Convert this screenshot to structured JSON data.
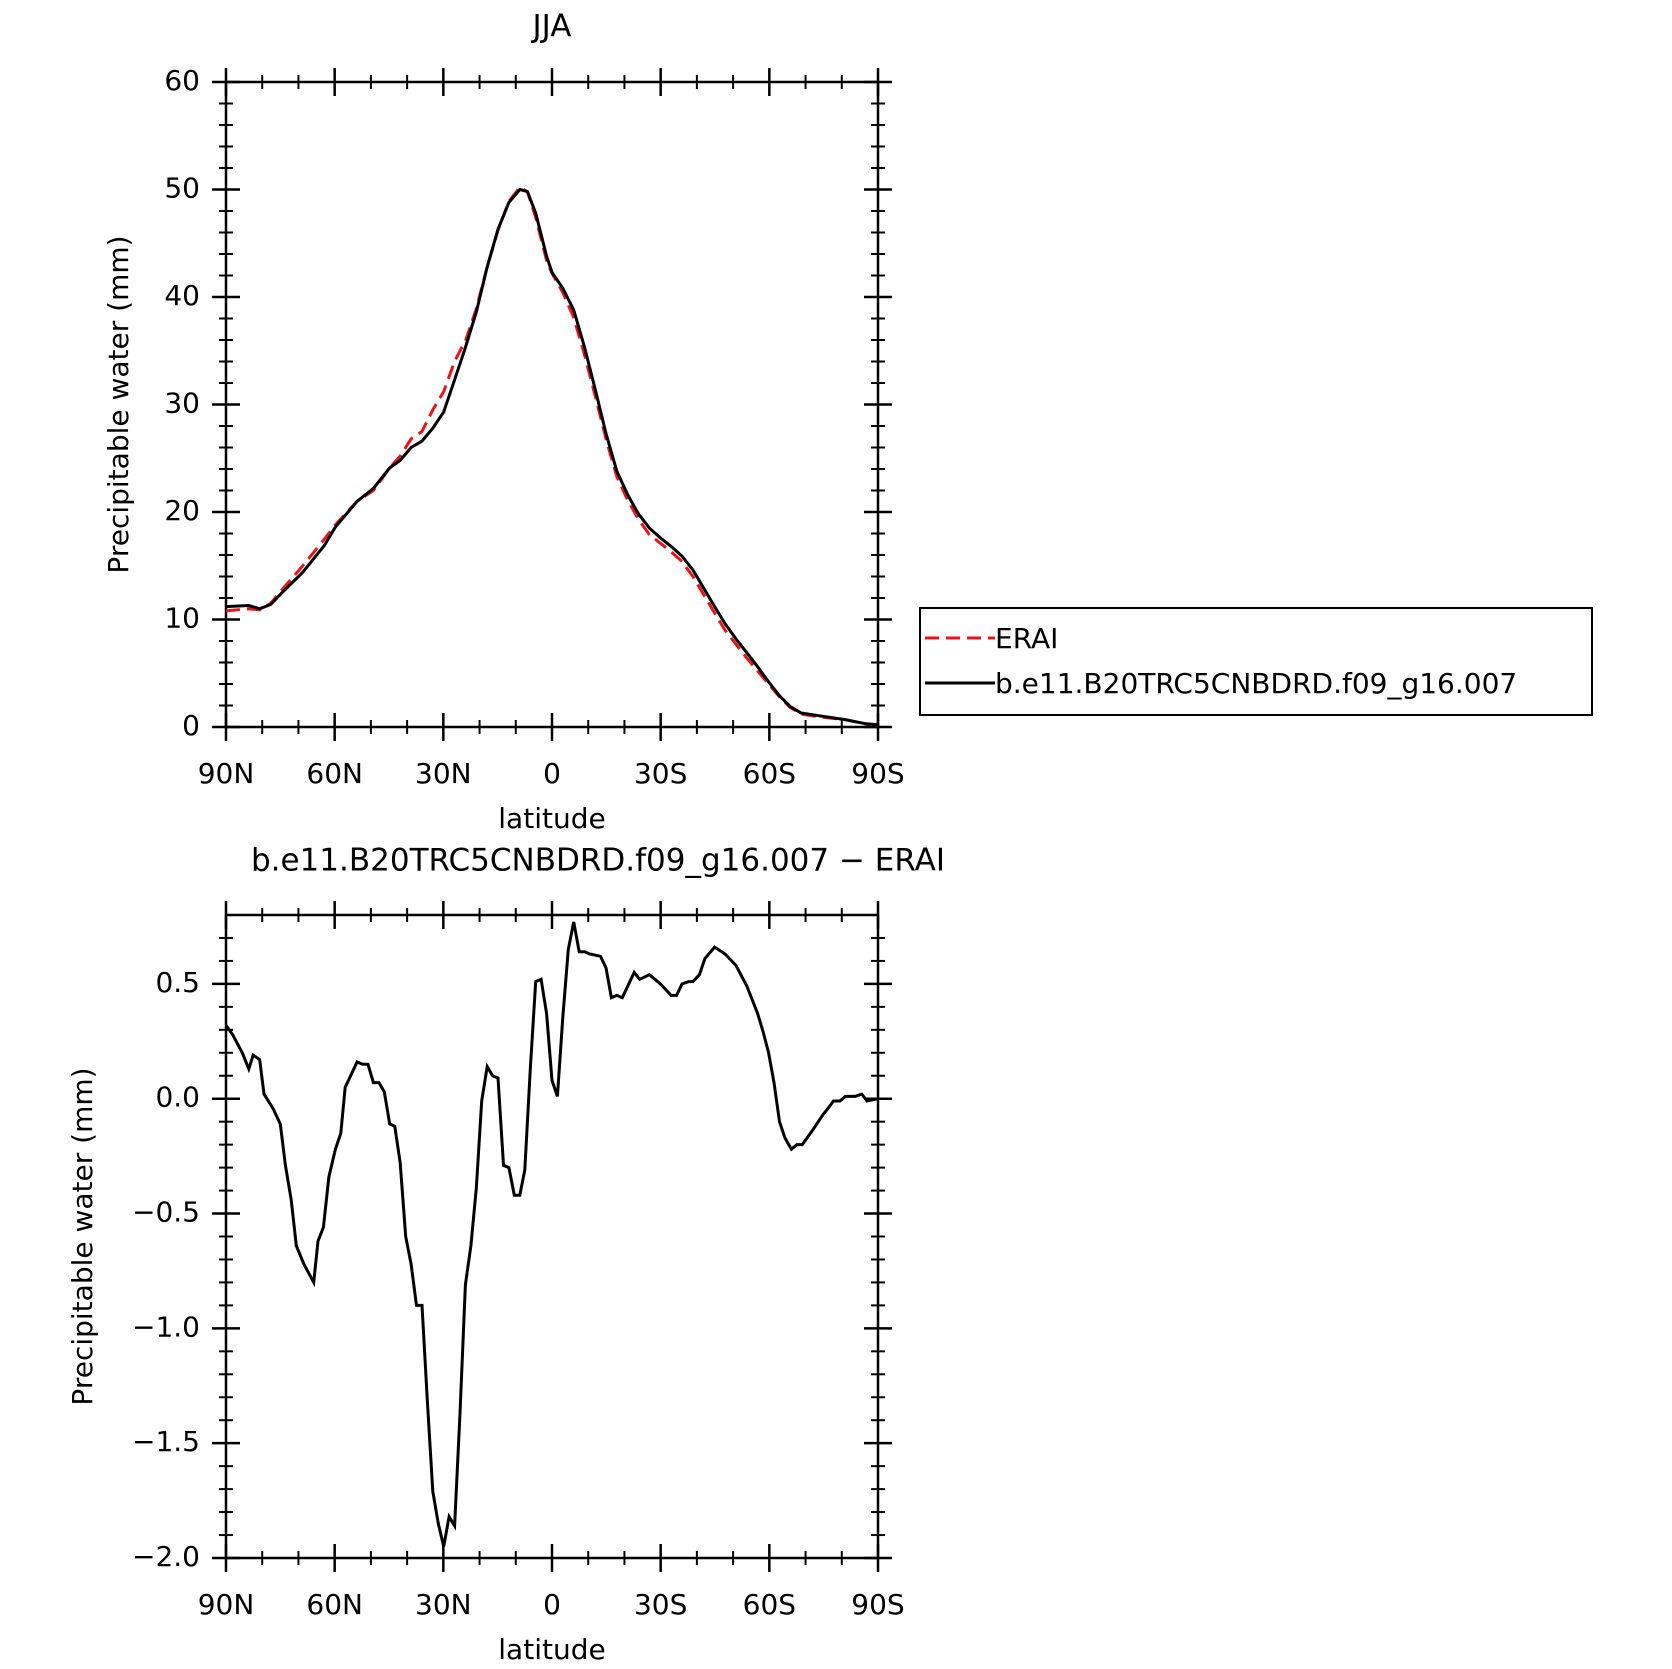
{
  "chart_data": [
    {
      "type": "line",
      "title": "JJA",
      "xlabel": "latitude",
      "ylabel": "Precipitable water (mm)",
      "x": [
        90,
        83.7,
        80.7,
        77.7,
        74.2,
        68.8,
        62.8,
        59.8,
        53.8,
        49.3,
        44.8,
        41.9,
        38.9,
        35.9,
        32.9,
        29.9,
        26.9,
        25.4,
        23.9,
        20.9,
        17.9,
        14.9,
        11.9,
        8.9,
        6.8,
        4.5,
        1.5,
        0,
        -3,
        -6,
        -9,
        -12,
        -14.9,
        -17.9,
        -20.9,
        -23.9,
        -26.9,
        -29.9,
        -32.9,
        -35.9,
        -38.9,
        -41.9,
        -44.9,
        -47.8,
        -50.8,
        -53.8,
        -56.8,
        -59.8,
        -62.8,
        -65.8,
        -68.8,
        -74.8,
        -80.7,
        -86.7,
        -90
      ],
      "series": [
        {
          "name": "ERAI",
          "color": "#e8141c",
          "dash": true,
          "values": [
            10.8,
            11.0,
            10.9,
            11.5,
            12.9,
            15.0,
            17.5,
            18.8,
            21.0,
            22.0,
            24.1,
            25.2,
            26.8,
            27.5,
            29.5,
            31.2,
            34.0,
            35.0,
            35.9,
            38.9,
            42.8,
            46.2,
            48.9,
            50.2,
            49.8,
            47.4,
            43.4,
            42.2,
            40.4,
            38.1,
            34.6,
            30.7,
            26.8,
            23.3,
            21.1,
            19.3,
            17.9,
            17.1,
            16.3,
            15.4,
            14.0,
            12.3,
            10.6,
            9.0,
            7.7,
            6.4,
            5.2,
            4.0,
            2.8,
            1.8,
            1.2,
            0.9,
            0.7,
            0.3,
            0.2
          ]
        },
        {
          "name": "b.e11.B20TRC5CNBDRD.f09_g16.007",
          "color": "#000000",
          "dash": false,
          "values": [
            11.2,
            11.3,
            11.0,
            11.4,
            12.6,
            14.4,
            16.9,
            18.6,
            21.0,
            22.2,
            24.1,
            24.8,
            26.0,
            26.6,
            27.8,
            29.3,
            32.3,
            33.8,
            35.3,
            38.6,
            42.8,
            46.3,
            48.8,
            50.0,
            49.8,
            47.8,
            43.8,
            42.3,
            40.8,
            38.8,
            35.3,
            31.3,
            27.3,
            23.8,
            21.6,
            19.8,
            18.5,
            17.6,
            16.8,
            15.9,
            14.6,
            12.9,
            11.2,
            9.6,
            8.2,
            6.9,
            5.6,
            4.2,
            2.9,
            1.9,
            1.3,
            1.0,
            0.7,
            0.3,
            0.2
          ]
        }
      ],
      "xlim": [
        90,
        -90
      ],
      "xticks": [
        {
          "value": 90,
          "label": "90N"
        },
        {
          "value": 60,
          "label": "60N"
        },
        {
          "value": 30,
          "label": "30N"
        },
        0,
        {
          "value": -30,
          "label": "30S"
        },
        {
          "value": -60,
          "label": "60S"
        },
        {
          "value": -90,
          "label": "90S"
        }
      ],
      "xminorticks": [
        80,
        70,
        50,
        40,
        20,
        10,
        -10,
        -20,
        -40,
        -50,
        -70,
        -80
      ],
      "ylim": [
        0,
        60
      ],
      "yticks": [
        0,
        10,
        20,
        30,
        40,
        50,
        60
      ],
      "yminorticks": [
        2,
        4,
        6,
        8,
        12,
        14,
        16,
        18,
        22,
        24,
        26,
        28,
        32,
        34,
        36,
        38,
        42,
        44,
        46,
        48,
        52,
        54,
        56,
        58
      ],
      "legend": "right"
    },
    {
      "type": "line",
      "title": "b.e11.B20TRC5CNBDRD.f09_g16.007 − ERAI",
      "xlabel": "latitude",
      "ylabel": "Precipitable water (mm)",
      "x": [
        90,
        88.2,
        85.5,
        83.7,
        82.5,
        80.7,
        79.5,
        77.1,
        75,
        73.6,
        72,
        70.6,
        68.5,
        65.8,
        64.6,
        63.1,
        61.6,
        59.8,
        58.3,
        57.1,
        55.6,
        53.8,
        52.3,
        50.8,
        49.3,
        47.8,
        46.3,
        44.8,
        43.4,
        41.9,
        40.4,
        38.9,
        37.4,
        35.9,
        34.4,
        32.9,
        31.4,
        29.9,
        28.4,
        26.9,
        25.4,
        23.9,
        22.4,
        20.9,
        19.4,
        17.9,
        16.4,
        14.9,
        13.4,
        11.9,
        10.4,
        8.9,
        7.5,
        6.0,
        4.5,
        3.0,
        1.5,
        0,
        -1.5,
        -3.0,
        -4.5,
        -6.0,
        -7.5,
        -9.0,
        -10.4,
        -13.4,
        -14.9,
        -16.4,
        -17.9,
        -19.4,
        -20.9,
        -22.7,
        -24.2,
        -26.9,
        -29.9,
        -32.9,
        -34.4,
        -35.9,
        -37.7,
        -38.9,
        -40.7,
        -42.2,
        -44.9,
        -47.8,
        -50.8,
        -53.8,
        -56.8,
        -58.3,
        -59.8,
        -61.3,
        -62.8,
        -64.3,
        -66.1,
        -67.6,
        -69.1,
        -71.8,
        -74.8,
        -76.3,
        -77.7,
        -79.5,
        -81.0,
        -83.7,
        -85.5,
        -87.0,
        -90
      ],
      "series": [
        {
          "color": "#000000",
          "dash": false,
          "values": [
            0.32,
            0.28,
            0.2,
            0.13,
            0.19,
            0.17,
            0.02,
            -0.04,
            -0.11,
            -0.29,
            -0.44,
            -0.64,
            -0.72,
            -0.8,
            -0.62,
            -0.56,
            -0.34,
            -0.22,
            -0.15,
            0.05,
            0.1,
            0.16,
            0.15,
            0.15,
            0.07,
            0.07,
            0.03,
            -0.11,
            -0.12,
            -0.28,
            -0.6,
            -0.72,
            -0.9,
            -0.9,
            -1.32,
            -1.71,
            -1.85,
            -1.95,
            -1.82,
            -1.86,
            -1.37,
            -0.81,
            -0.64,
            -0.39,
            -0.01,
            0.14,
            0.1,
            0.09,
            -0.29,
            -0.3,
            -0.42,
            -0.42,
            -0.31,
            0.13,
            0.51,
            0.52,
            0.37,
            0.08,
            0.01,
            0.36,
            0.65,
            0.77,
            0.64,
            0.64,
            0.63,
            0.62,
            0.57,
            0.44,
            0.45,
            0.44,
            0.49,
            0.55,
            0.52,
            0.54,
            0.5,
            0.45,
            0.45,
            0.5,
            0.51,
            0.51,
            0.54,
            0.61,
            0.66,
            0.63,
            0.58,
            0.49,
            0.37,
            0.29,
            0.2,
            0.07,
            -0.1,
            -0.17,
            -0.22,
            -0.2,
            -0.2,
            -0.14,
            -0.07,
            -0.04,
            -0.01,
            -0.01,
            0.01,
            0.01,
            0.02,
            -0.01,
            0.0
          ]
        }
      ],
      "xlim": [
        90,
        -90
      ],
      "xticks": [
        {
          "value": 90,
          "label": "90N"
        },
        {
          "value": 60,
          "label": "60N"
        },
        {
          "value": 30,
          "label": "30N"
        },
        0,
        {
          "value": -30,
          "label": "30S"
        },
        {
          "value": -60,
          "label": "60S"
        },
        {
          "value": -90,
          "label": "90S"
        }
      ],
      "xminorticks": [
        80,
        70,
        50,
        40,
        20,
        10,
        -10,
        -20,
        -40,
        -50,
        -70,
        -80
      ],
      "ylim": [
        -2.0,
        0.8
      ],
      "yticks": [
        0.5,
        {
          "value": 0.0,
          "label": "0.0"
        },
        {
          "value": -0.5,
          "label": "−0.5"
        },
        {
          "value": -1.0,
          "label": "−1.0"
        },
        {
          "value": -1.5,
          "label": "−1.5"
        },
        {
          "value": -2.0,
          "label": "−2.0"
        }
      ],
      "yminorticks": [
        0.7,
        0.6,
        0.4,
        0.3,
        0.2,
        0.1,
        -0.1,
        -0.2,
        -0.3,
        -0.4,
        -0.6,
        -0.7,
        -0.8,
        -0.9,
        -1.1,
        -1.2,
        -1.3,
        -1.4,
        -1.6,
        -1.7,
        -1.8,
        -1.9
      ]
    }
  ]
}
